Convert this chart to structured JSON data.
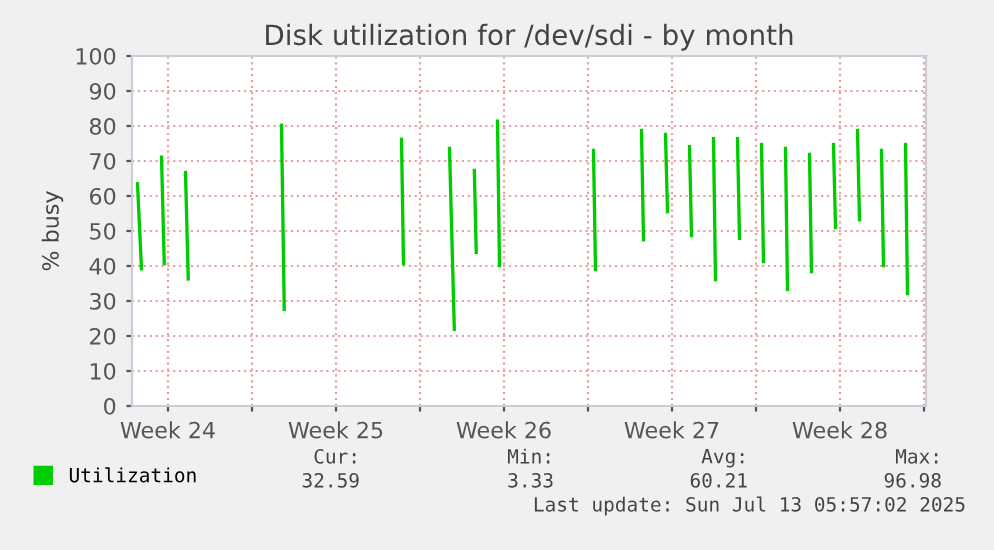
{
  "chart_data": {
    "type": "line",
    "title": "Disk utilization for /dev/sdi - by month",
    "ylabel": "% busy",
    "xlim": [
      "2025-06-11T00:00",
      "2025-07-14T02:00"
    ],
    "xticks": [
      {
        "value": "2025-06-12T12:00",
        "label": "Week 24"
      },
      {
        "value": "2025-06-16T00:00",
        "label": null
      },
      {
        "value": "2025-06-19T12:00",
        "label": "Week 25"
      },
      {
        "value": "2025-06-23T00:00",
        "label": null
      },
      {
        "value": "2025-06-26T12:00",
        "label": "Week 26"
      },
      {
        "value": "2025-06-30T00:00",
        "label": null
      },
      {
        "value": "2025-07-03T12:00",
        "label": "Week 27"
      },
      {
        "value": "2025-07-07T00:00",
        "label": null
      },
      {
        "value": "2025-07-10T12:00",
        "label": "Week 28"
      },
      {
        "value": "2025-07-14T00:00",
        "label": null
      }
    ],
    "ylim": [
      0,
      100
    ],
    "yticks": [
      0,
      10,
      20,
      30,
      40,
      50,
      60,
      70,
      80,
      90,
      100
    ],
    "grid": true,
    "legend": "bottom left",
    "marker": "none",
    "line_style": "solid",
    "series": [
      {
        "name": "Utilization",
        "color": "#00cc00",
        "x": [
          "2025-06-11T05:30",
          "2025-06-11T09:30",
          "2025-06-11T18:00",
          "2025-06-12T05:30",
          "2025-06-12T08:15",
          "2025-06-12T18:00",
          "2025-06-13T05:30",
          "2025-06-13T08:15",
          "2025-06-14T00:00",
          "2025-06-17T05:30",
          "2025-06-17T08:15",
          "2025-06-20T00:00",
          "2025-06-22T05:30",
          "2025-06-22T07:30",
          "2025-06-23T12:00",
          "2025-06-24T05:30",
          "2025-06-24T10:20",
          "2025-06-24T18:00",
          "2025-06-25T06:20",
          "2025-06-25T08:15",
          "2025-06-25T18:00",
          "2025-06-26T05:30",
          "2025-06-26T07:30",
          "2025-06-28T00:00",
          "2025-06-30T05:30",
          "2025-06-30T07:30",
          "2025-07-01T00:00",
          "2025-07-02T05:30",
          "2025-07-02T07:30",
          "2025-07-02T18:00",
          "2025-07-03T05:30",
          "2025-07-03T07:30",
          "2025-07-03T18:00",
          "2025-07-04T05:30",
          "2025-07-04T07:30",
          "2025-07-04T18:00",
          "2025-07-05T05:30",
          "2025-07-05T07:30",
          "2025-07-05T18:00",
          "2025-07-06T05:30",
          "2025-07-06T07:30",
          "2025-07-06T18:00",
          "2025-07-07T05:30",
          "2025-07-07T07:30",
          "2025-07-07T18:00",
          "2025-07-08T05:30",
          "2025-07-08T07:30",
          "2025-07-08T18:00",
          "2025-07-09T05:30",
          "2025-07-09T07:30",
          "2025-07-09T18:00",
          "2025-07-10T05:30",
          "2025-07-10T07:30",
          "2025-07-10T18:00",
          "2025-07-11T05:30",
          "2025-07-11T07:30",
          "2025-07-11T18:00",
          "2025-07-12T05:30",
          "2025-07-12T07:30",
          "2025-07-12T18:00",
          "2025-07-13T05:30",
          "2025-07-13T07:30"
        ],
        "values": [
          63.5,
          39.2,
          null,
          71.1,
          40.7,
          null,
          66.7,
          36.3,
          null,
          80.2,
          27.6,
          null,
          76.2,
          40.7,
          null,
          73.6,
          21.9,
          null,
          67.3,
          43.9,
          null,
          81.4,
          40.1,
          null,
          73.0,
          39.0,
          null,
          78.7,
          47.5,
          null,
          77.6,
          55.5,
          null,
          74.1,
          48.7,
          null,
          76.4,
          36.1,
          null,
          76.4,
          47.9,
          null,
          74.7,
          41.3,
          null,
          73.6,
          33.3,
          null,
          71.9,
          38.4,
          null,
          74.7,
          51.0,
          null,
          78.7,
          53.2,
          null,
          73.0,
          40.1,
          null,
          74.7,
          32.1
        ]
      }
    ],
    "annotations": [
      "Cur:",
      "Min:",
      "Avg:",
      "Max:",
      "32.59",
      "3.33",
      "60.21",
      "96.98",
      "Last update: Sun Jul 13 05:57:02 2025"
    ]
  }
}
